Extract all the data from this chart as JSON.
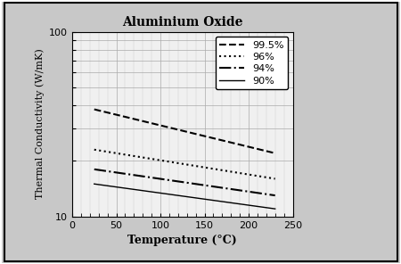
{
  "title": "Aluminium Oxide",
  "xlabel": "Temperature (°C)",
  "ylabel": "Thermal Conductivity (W/mK)",
  "xlim": [
    0,
    250
  ],
  "ylim_log": [
    10,
    100
  ],
  "x_ticks": [
    0,
    50,
    100,
    150,
    200,
    250
  ],
  "fig_bg": "#d0d0d0",
  "plot_bg": "#f0f0f0",
  "series": [
    {
      "label": "99.5%",
      "linestyle": "--",
      "color": "black",
      "linewidth": 1.5,
      "dashes": [
        6,
        3
      ],
      "x": [
        25,
        230
      ],
      "y": [
        38,
        22
      ]
    },
    {
      "label": "96%",
      "linestyle": ":",
      "color": "black",
      "linewidth": 1.5,
      "x": [
        25,
        230
      ],
      "y": [
        23,
        16
      ]
    },
    {
      "label": "94%",
      "linestyle": "-.",
      "color": "black",
      "linewidth": 1.5,
      "x": [
        25,
        230
      ],
      "y": [
        18,
        13
      ]
    },
    {
      "label": "90%",
      "linestyle": "-",
      "color": "black",
      "linewidth": 1.0,
      "x": [
        25,
        230
      ],
      "y": [
        15,
        11
      ]
    }
  ]
}
